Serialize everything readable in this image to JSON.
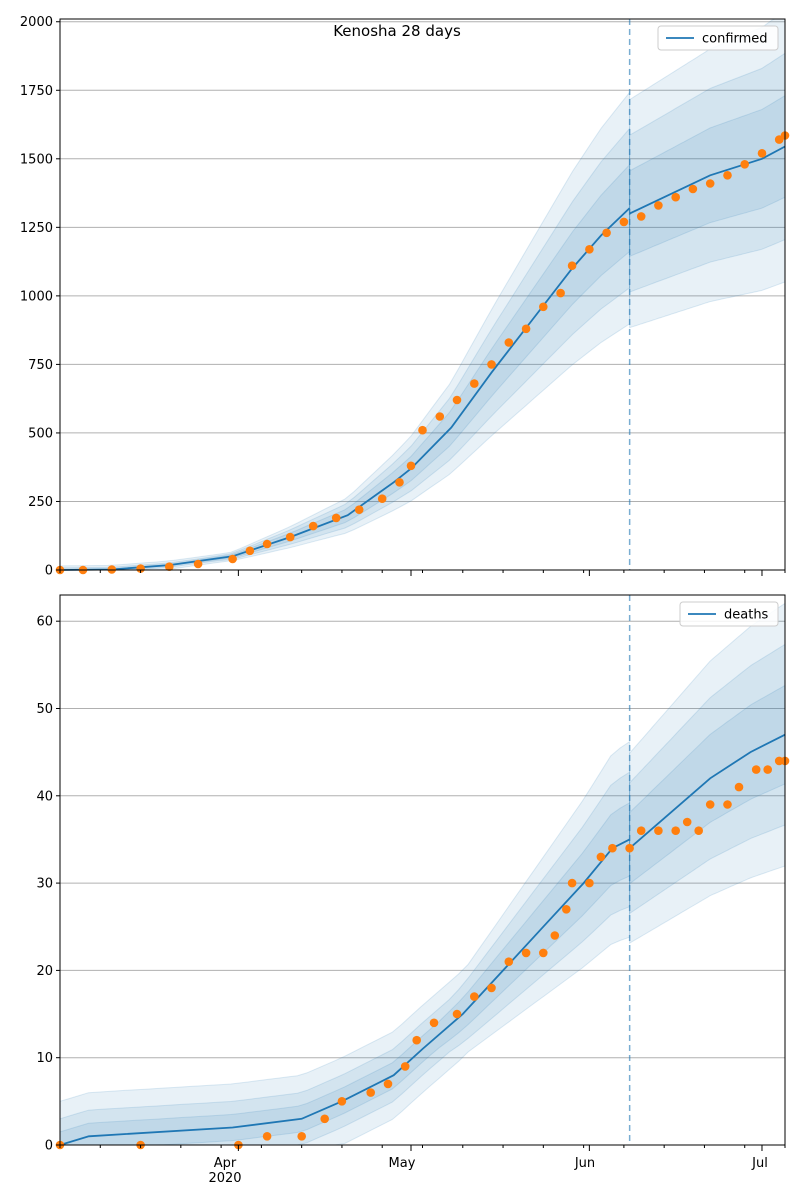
{
  "figure": {
    "title": "Kenosha 28 days",
    "x_tick_labels": [
      "Apr",
      "May",
      "Jun",
      "Jul"
    ],
    "x_year_label": "2020"
  },
  "colors": {
    "model_line": "#1f77b4",
    "observed": "#ff7f0e",
    "band": "#1f77b4",
    "grid": "#b0b0b0",
    "cutoff": "#1f77b4"
  },
  "chart_data": [
    {
      "type": "line",
      "title": "Kenosha 28 days",
      "legend": "confirmed",
      "legend_position": "top-right",
      "grid": "y",
      "x_range": [
        "2020-03-01",
        "2020-07-05"
      ],
      "ylim": [
        0,
        2010
      ],
      "yticks": [
        0,
        250,
        500,
        750,
        1000,
        1250,
        1500,
        1750,
        2000
      ],
      "forecast_start": "2020-06-08",
      "model_points": [
        [
          "2020-03-01",
          0
        ],
        [
          "2020-03-10",
          2
        ],
        [
          "2020-03-20",
          18
        ],
        [
          "2020-03-31",
          50
        ],
        [
          "2020-04-10",
          120
        ],
        [
          "2020-04-20",
          200
        ],
        [
          "2020-04-28",
          320
        ],
        [
          "2020-05-01",
          370
        ],
        [
          "2020-05-08",
          520
        ],
        [
          "2020-05-15",
          720
        ],
        [
          "2020-05-22",
          910
        ],
        [
          "2020-05-29",
          1100
        ],
        [
          "2020-06-03",
          1220
        ],
        [
          "2020-06-08",
          1320
        ],
        [
          "2020-06-08",
          1300
        ],
        [
          "2020-06-15",
          1370
        ],
        [
          "2020-06-22",
          1440
        ],
        [
          "2020-07-01",
          1500
        ],
        [
          "2020-07-05",
          1545
        ]
      ],
      "observed": [
        [
          "2020-03-01",
          0
        ],
        [
          "2020-03-05",
          0
        ],
        [
          "2020-03-10",
          2
        ],
        [
          "2020-03-15",
          5
        ],
        [
          "2020-03-20",
          12
        ],
        [
          "2020-03-25",
          22
        ],
        [
          "2020-03-31",
          40
        ],
        [
          "2020-04-03",
          70
        ],
        [
          "2020-04-06",
          95
        ],
        [
          "2020-04-10",
          120
        ],
        [
          "2020-04-14",
          160
        ],
        [
          "2020-04-18",
          190
        ],
        [
          "2020-04-22",
          220
        ],
        [
          "2020-04-26",
          260
        ],
        [
          "2020-04-29",
          320
        ],
        [
          "2020-05-01",
          380
        ],
        [
          "2020-05-03",
          510
        ],
        [
          "2020-05-06",
          560
        ],
        [
          "2020-05-09",
          620
        ],
        [
          "2020-05-12",
          680
        ],
        [
          "2020-05-15",
          750
        ],
        [
          "2020-05-18",
          830
        ],
        [
          "2020-05-21",
          880
        ],
        [
          "2020-05-24",
          960
        ],
        [
          "2020-05-27",
          1010
        ],
        [
          "2020-05-29",
          1110
        ],
        [
          "2020-06-01",
          1170
        ],
        [
          "2020-06-04",
          1230
        ],
        [
          "2020-06-07",
          1270
        ],
        [
          "2020-06-10",
          1290
        ],
        [
          "2020-06-13",
          1330
        ],
        [
          "2020-06-16",
          1360
        ],
        [
          "2020-06-19",
          1390
        ],
        [
          "2020-06-22",
          1410
        ],
        [
          "2020-06-25",
          1440
        ],
        [
          "2020-06-28",
          1480
        ],
        [
          "2020-07-01",
          1520
        ],
        [
          "2020-07-04",
          1570
        ],
        [
          "2020-07-05",
          1585
        ]
      ]
    },
    {
      "type": "line",
      "legend": "deaths",
      "legend_position": "top-right",
      "grid": "y",
      "x_range": [
        "2020-03-01",
        "2020-07-05"
      ],
      "ylim": [
        0,
        63
      ],
      "yticks": [
        0,
        10,
        20,
        30,
        40,
        50,
        60
      ],
      "forecast_start": "2020-06-08",
      "model_points": [
        [
          "2020-03-01",
          0
        ],
        [
          "2020-03-06",
          1
        ],
        [
          "2020-03-31",
          2
        ],
        [
          "2020-04-12",
          3
        ],
        [
          "2020-04-19",
          5
        ],
        [
          "2020-04-28",
          8
        ],
        [
          "2020-05-03",
          11
        ],
        [
          "2020-05-10",
          15
        ],
        [
          "2020-05-17",
          20
        ],
        [
          "2020-05-24",
          25
        ],
        [
          "2020-05-31",
          30
        ],
        [
          "2020-06-05",
          34
        ],
        [
          "2020-06-08",
          35
        ],
        [
          "2020-06-08",
          34
        ],
        [
          "2020-06-15",
          38
        ],
        [
          "2020-06-22",
          42
        ],
        [
          "2020-06-29",
          45
        ],
        [
          "2020-07-05",
          47
        ]
      ],
      "observed": [
        [
          "2020-03-01",
          0
        ],
        [
          "2020-03-15",
          0
        ],
        [
          "2020-04-01",
          0
        ],
        [
          "2020-04-06",
          1
        ],
        [
          "2020-04-12",
          1
        ],
        [
          "2020-04-16",
          3
        ],
        [
          "2020-04-19",
          5
        ],
        [
          "2020-04-24",
          6
        ],
        [
          "2020-04-27",
          7
        ],
        [
          "2020-04-30",
          9
        ],
        [
          "2020-05-02",
          12
        ],
        [
          "2020-05-05",
          14
        ],
        [
          "2020-05-09",
          15
        ],
        [
          "2020-05-12",
          17
        ],
        [
          "2020-05-15",
          18
        ],
        [
          "2020-05-18",
          21
        ],
        [
          "2020-05-21",
          22
        ],
        [
          "2020-05-24",
          22
        ],
        [
          "2020-05-26",
          24
        ],
        [
          "2020-05-28",
          27
        ],
        [
          "2020-05-29",
          30
        ],
        [
          "2020-06-01",
          30
        ],
        [
          "2020-06-03",
          33
        ],
        [
          "2020-06-05",
          34
        ],
        [
          "2020-06-08",
          34
        ],
        [
          "2020-06-10",
          36
        ],
        [
          "2020-06-13",
          36
        ],
        [
          "2020-06-16",
          36
        ],
        [
          "2020-06-18",
          37
        ],
        [
          "2020-06-20",
          36
        ],
        [
          "2020-06-22",
          39
        ],
        [
          "2020-06-25",
          39
        ],
        [
          "2020-06-27",
          41
        ],
        [
          "2020-06-30",
          43
        ],
        [
          "2020-07-02",
          43
        ],
        [
          "2020-07-04",
          44
        ],
        [
          "2020-07-05",
          44
        ]
      ]
    }
  ]
}
